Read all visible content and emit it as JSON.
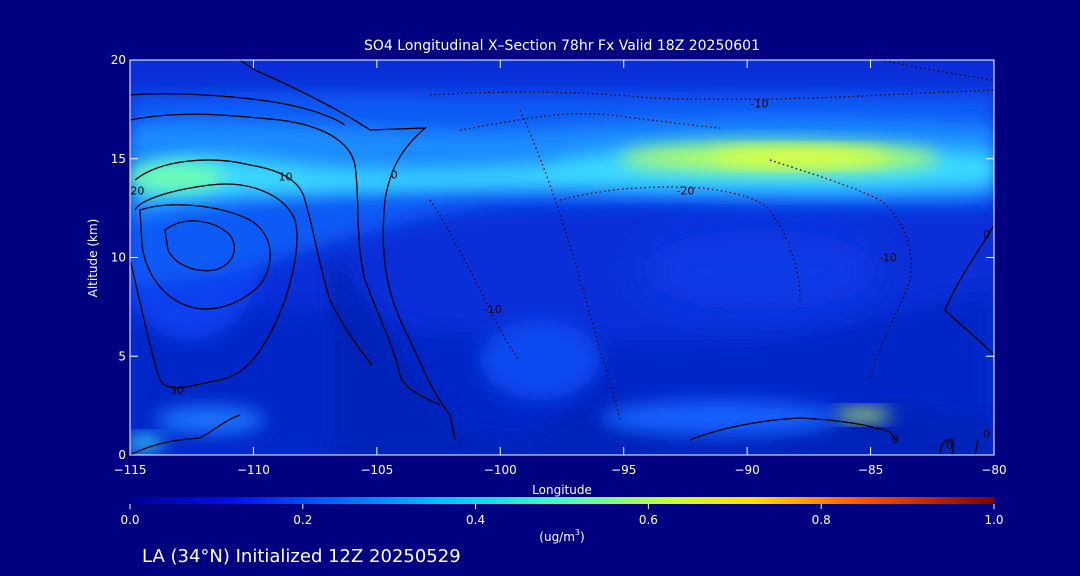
{
  "chart_data": {
    "type": "heatmap",
    "title": "SO4 Longitudinal X–Section 78hr  Fx Valid 18Z 20250601",
    "xlabel": "Longitude",
    "ylabel": "Altitude (km)",
    "xlim": [
      -115,
      -80
    ],
    "ylim": [
      0,
      20
    ],
    "x_ticks": [
      -115,
      -110,
      -105,
      -100,
      -95,
      -90,
      -85,
      -80
    ],
    "x_tick_labels": [
      "−115",
      "−110",
      "−105",
      "−100",
      "−95",
      "−90",
      "−85",
      "−80"
    ],
    "y_ticks": [
      0,
      5,
      10,
      15,
      20
    ],
    "y_tick_labels": [
      "0",
      "5",
      "10",
      "15",
      "20"
    ],
    "colorbar": {
      "min": 0.0,
      "max": 1.0,
      "ticks": [
        0.0,
        0.2,
        0.4,
        0.6,
        0.8,
        1.0
      ],
      "tick_labels": [
        "0.0",
        "0.2",
        "0.4",
        "0.6",
        "0.8",
        "1.0"
      ],
      "unit_base": "(ug/m",
      "unit_exp": "3",
      "unit_close": ")"
    },
    "concentration_regions": [
      {
        "lon": -90,
        "alt": 15.0,
        "value": 0.58
      },
      {
        "lon": -87,
        "alt": 14.8,
        "value": 0.6
      },
      {
        "lon": -95,
        "alt": 15.3,
        "value": 0.48
      },
      {
        "lon": -101,
        "alt": 15.0,
        "value": 0.36
      },
      {
        "lon": -113,
        "alt": 13.8,
        "value": 0.5
      },
      {
        "lon": -111,
        "alt": 14.4,
        "value": 0.45
      },
      {
        "lon": -85,
        "alt": 2.0,
        "value": 0.56
      },
      {
        "lon": -114.5,
        "alt": 0.6,
        "value": 0.42
      },
      {
        "lon": -98,
        "alt": 5.5,
        "value": 0.18
      },
      {
        "lon": -90,
        "alt": 10.0,
        "value": 0.15
      }
    ],
    "contour_labels": [
      {
        "text": "-10",
        "lon": -89.5,
        "alt": 17.8
      },
      {
        "text": "-20",
        "lon": -92.5,
        "alt": 13.4
      },
      {
        "text": "10",
        "lon": -108.7,
        "alt": 14.1
      },
      {
        "text": "0",
        "lon": -104.3,
        "alt": 14.2
      },
      {
        "text": "20",
        "lon": -114.7,
        "alt": 13.4
      },
      {
        "text": "-10",
        "lon": -100.3,
        "alt": 7.4
      },
      {
        "text": "-10",
        "lon": -84.3,
        "alt": 10.0
      },
      {
        "text": "0",
        "lon": -80.3,
        "alt": 11.2
      },
      {
        "text": "30",
        "lon": -113.1,
        "alt": 3.3
      },
      {
        "text": "0",
        "lon": -84.0,
        "alt": 0.8
      },
      {
        "text": "0",
        "lon": -81.8,
        "alt": 0.5
      },
      {
        "text": "0",
        "lon": -80.3,
        "alt": 1.1
      }
    ]
  },
  "footer": {
    "caption": "LA (34°N) Initialized 12Z 20250529"
  }
}
